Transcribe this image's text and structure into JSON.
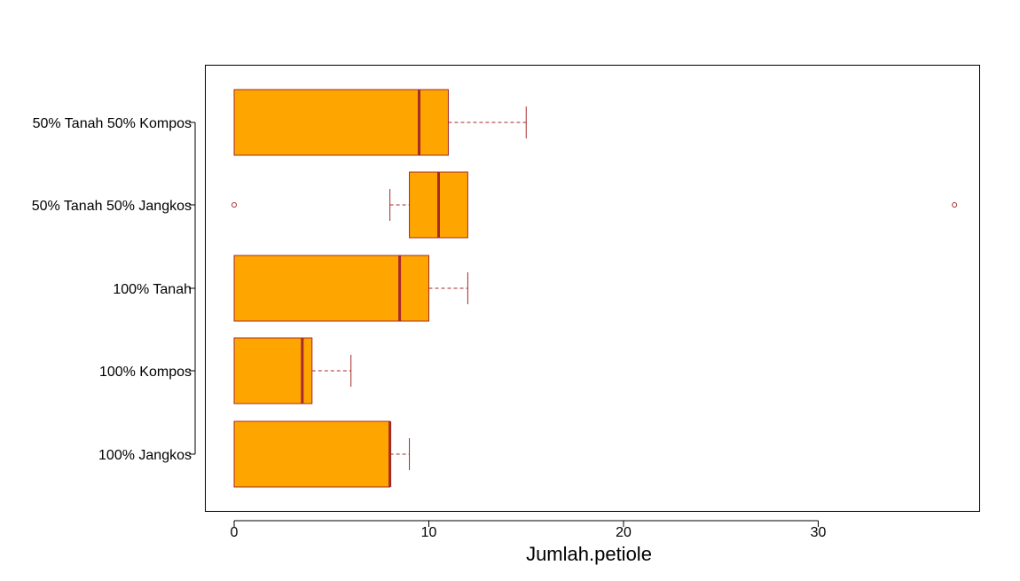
{
  "chart_data": {
    "type": "boxplot",
    "orientation": "horizontal",
    "title": "",
    "xlabel": "Jumlah.petiole",
    "ylabel": "",
    "xlim": [
      -1.5,
      38.5
    ],
    "x_ticks": [
      0,
      10,
      20,
      30
    ],
    "x_tick_labels": [
      "0",
      "10",
      "20",
      "30"
    ],
    "grid": false,
    "legend": "none",
    "colors": {
      "box_fill": "#FFA500",
      "box_border": "#A52A2A",
      "median": "#A52A2A",
      "whisker": "#A52A2A",
      "outlier": "#A52A2A",
      "frame": "#000000"
    },
    "categories": [
      "100% Jangkos",
      "100% Kompos",
      "100% Tanah",
      "50% Tanah 50% Jangkos",
      "50% Tanah 50% Kompos"
    ],
    "boxes": [
      {
        "category": "100% Jangkos",
        "whisker_low": 0,
        "q1": 0,
        "median": 8,
        "q3": 8,
        "whisker_high": 9,
        "outliers": []
      },
      {
        "category": "100% Kompos",
        "whisker_low": 0,
        "q1": 0,
        "median": 3.5,
        "q3": 4,
        "whisker_high": 6,
        "outliers": []
      },
      {
        "category": "100% Tanah",
        "whisker_low": 0,
        "q1": 0,
        "median": 8.5,
        "q3": 10,
        "whisker_high": 12,
        "outliers": []
      },
      {
        "category": "50% Tanah 50% Jangkos",
        "whisker_low": 8,
        "q1": 9,
        "median": 10.5,
        "q3": 12,
        "whisker_high": 12,
        "outliers": [
          0,
          37
        ]
      },
      {
        "category": "50% Tanah 50% Kompos",
        "whisker_low": 0,
        "q1": 0,
        "median": 9.5,
        "q3": 11,
        "whisker_high": 15,
        "outliers": []
      }
    ]
  }
}
